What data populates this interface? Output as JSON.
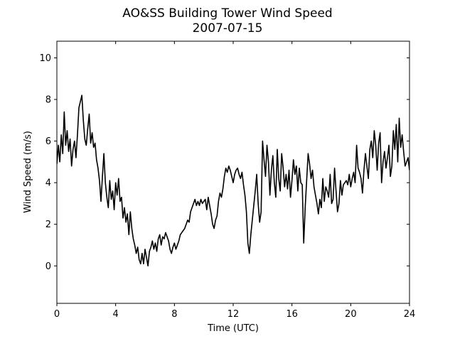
{
  "chart_data": {
    "type": "line",
    "title": "AO&SS Building Tower Wind Speed",
    "subtitle": "2007-07-15",
    "xlabel": "Time (UTC)",
    "ylabel": "Wind Speed (m/s)",
    "xlim": [
      0,
      24
    ],
    "ylim": [
      -1.8,
      10.8
    ],
    "xticks": [
      0,
      4,
      8,
      12,
      16,
      20,
      24
    ],
    "yticks": [
      0,
      2,
      4,
      6,
      8,
      10
    ],
    "grid": false,
    "line_color": "#000000",
    "series": [
      {
        "x": [
          0.0,
          0.1,
          0.2,
          0.3,
          0.4,
          0.5,
          0.6,
          0.7,
          0.8,
          0.9,
          1.0,
          1.1,
          1.2,
          1.3,
          1.4,
          1.5,
          1.6,
          1.7,
          1.8,
          1.9,
          2.0,
          2.1,
          2.2,
          2.3,
          2.4,
          2.5,
          2.6,
          2.7,
          2.8,
          2.9,
          3.0,
          3.1,
          3.2,
          3.3,
          3.4,
          3.5,
          3.6,
          3.7,
          3.8,
          3.9,
          4.0,
          4.1,
          4.2,
          4.3,
          4.4,
          4.5,
          4.6,
          4.7,
          4.8,
          4.9,
          5.0,
          5.1,
          5.2,
          5.3,
          5.4,
          5.5,
          5.6,
          5.7,
          5.8,
          5.9,
          6.0,
          6.1,
          6.2,
          6.3,
          6.4,
          6.5,
          6.6,
          6.7,
          6.8,
          6.9,
          7.0,
          7.1,
          7.2,
          7.3,
          7.4,
          7.5,
          7.6,
          7.7,
          7.8,
          7.9,
          8.0,
          8.1,
          8.2,
          8.3,
          8.4,
          8.5,
          8.6,
          8.7,
          8.8,
          8.9,
          9.0,
          9.1,
          9.2,
          9.3,
          9.4,
          9.5,
          9.6,
          9.7,
          9.8,
          9.9,
          10.0,
          10.1,
          10.2,
          10.3,
          10.4,
          10.5,
          10.6,
          10.7,
          10.8,
          10.9,
          11.0,
          11.1,
          11.2,
          11.3,
          11.4,
          11.5,
          11.6,
          11.7,
          11.8,
          11.9,
          12.0,
          12.1,
          12.2,
          12.3,
          12.4,
          12.5,
          12.6,
          12.7,
          12.8,
          12.9,
          13.0,
          13.1,
          13.2,
          13.3,
          13.4,
          13.5,
          13.6,
          13.7,
          13.8,
          13.9,
          14.0,
          14.1,
          14.2,
          14.3,
          14.4,
          14.5,
          14.6,
          14.7,
          14.8,
          14.9,
          15.0,
          15.1,
          15.2,
          15.3,
          15.4,
          15.5,
          15.6,
          15.7,
          15.8,
          15.9,
          16.0,
          16.1,
          16.2,
          16.3,
          16.4,
          16.5,
          16.6,
          16.7,
          16.8,
          16.9,
          17.0,
          17.1,
          17.2,
          17.3,
          17.4,
          17.5,
          17.6,
          17.7,
          17.8,
          17.9,
          18.0,
          18.1,
          18.2,
          18.3,
          18.4,
          18.5,
          18.6,
          18.7,
          18.8,
          18.9,
          19.0,
          19.1,
          19.2,
          19.3,
          19.4,
          19.5,
          19.6,
          19.7,
          19.8,
          19.9,
          20.0,
          20.1,
          20.2,
          20.3,
          20.4,
          20.5,
          20.6,
          20.7,
          20.8,
          20.9,
          21.0,
          21.1,
          21.2,
          21.3,
          21.4,
          21.5,
          21.6,
          21.7,
          21.8,
          21.9,
          22.0,
          22.1,
          22.2,
          22.3,
          22.4,
          22.5,
          22.6,
          22.7,
          22.8,
          22.9,
          23.0,
          23.1,
          23.2,
          23.3,
          23.4,
          23.5,
          23.6,
          23.7,
          23.8,
          23.9,
          24.0
        ],
        "values": [
          4.9,
          5.8,
          5.0,
          6.3,
          5.4,
          7.4,
          5.8,
          6.5,
          5.5,
          6.1,
          4.8,
          5.6,
          6.0,
          5.2,
          6.3,
          7.6,
          7.9,
          8.2,
          7.0,
          6.1,
          5.8,
          6.6,
          7.3,
          5.9,
          6.4,
          5.7,
          5.9,
          5.1,
          4.7,
          4.1,
          3.1,
          4.3,
          5.4,
          4.0,
          3.3,
          2.8,
          4.1,
          3.2,
          3.6,
          2.7,
          4.0,
          3.4,
          4.2,
          3.1,
          3.3,
          2.3,
          2.8,
          2.1,
          2.5,
          1.5,
          2.6,
          1.8,
          1.3,
          1.0,
          0.6,
          0.9,
          0.3,
          0.1,
          0.6,
          0.1,
          0.8,
          0.4,
          0.0,
          0.7,
          0.9,
          1.2,
          0.8,
          1.1,
          0.7,
          1.3,
          1.5,
          1.0,
          1.4,
          1.3,
          1.6,
          1.4,
          1.2,
          0.8,
          0.6,
          0.9,
          1.1,
          0.8,
          1.0,
          1.2,
          1.5,
          1.6,
          1.7,
          1.8,
          2.0,
          2.2,
          2.1,
          2.6,
          2.8,
          3.0,
          3.2,
          2.9,
          3.1,
          2.9,
          3.2,
          3.0,
          3.1,
          3.2,
          2.7,
          3.3,
          2.9,
          2.5,
          2.0,
          1.8,
          2.2,
          2.4,
          3.1,
          3.5,
          3.3,
          3.7,
          4.3,
          4.7,
          4.5,
          4.8,
          4.6,
          4.3,
          4.0,
          4.4,
          4.6,
          4.7,
          4.4,
          4.2,
          4.5,
          3.9,
          3.4,
          2.6,
          1.1,
          0.6,
          1.5,
          2.2,
          2.9,
          3.6,
          4.4,
          3.0,
          2.1,
          2.6,
          6.0,
          5.1,
          4.3,
          5.8,
          5.0,
          3.4,
          4.6,
          5.3,
          4.0,
          3.3,
          5.6,
          4.2,
          3.6,
          5.4,
          4.7,
          3.8,
          4.4,
          3.7,
          4.6,
          3.3,
          4.1,
          5.1,
          4.4,
          4.8,
          3.6,
          4.7,
          4.0,
          3.9,
          1.1,
          2.8,
          4.1,
          5.4,
          4.9,
          4.2,
          4.6,
          3.8,
          3.4,
          3.0,
          2.5,
          3.2,
          2.8,
          4.2,
          3.1,
          3.8,
          3.6,
          3.3,
          4.4,
          3.0,
          3.2,
          4.7,
          3.6,
          2.6,
          3.0,
          4.1,
          3.4,
          3.9,
          4.0,
          4.1,
          3.9,
          4.4,
          3.8,
          4.2,
          4.5,
          4.0,
          5.8,
          4.7,
          4.5,
          4.2,
          3.5,
          4.6,
          5.4,
          4.8,
          4.2,
          5.6,
          6.0,
          5.2,
          6.5,
          5.8,
          4.6,
          5.9,
          6.4,
          4.0,
          5.0,
          5.5,
          4.7,
          5.2,
          5.8,
          4.3,
          4.8,
          6.5,
          5.6,
          6.8,
          5.0,
          7.1,
          5.7,
          6.3,
          5.5,
          4.8,
          5.0,
          5.2,
          4.6
        ]
      }
    ]
  }
}
